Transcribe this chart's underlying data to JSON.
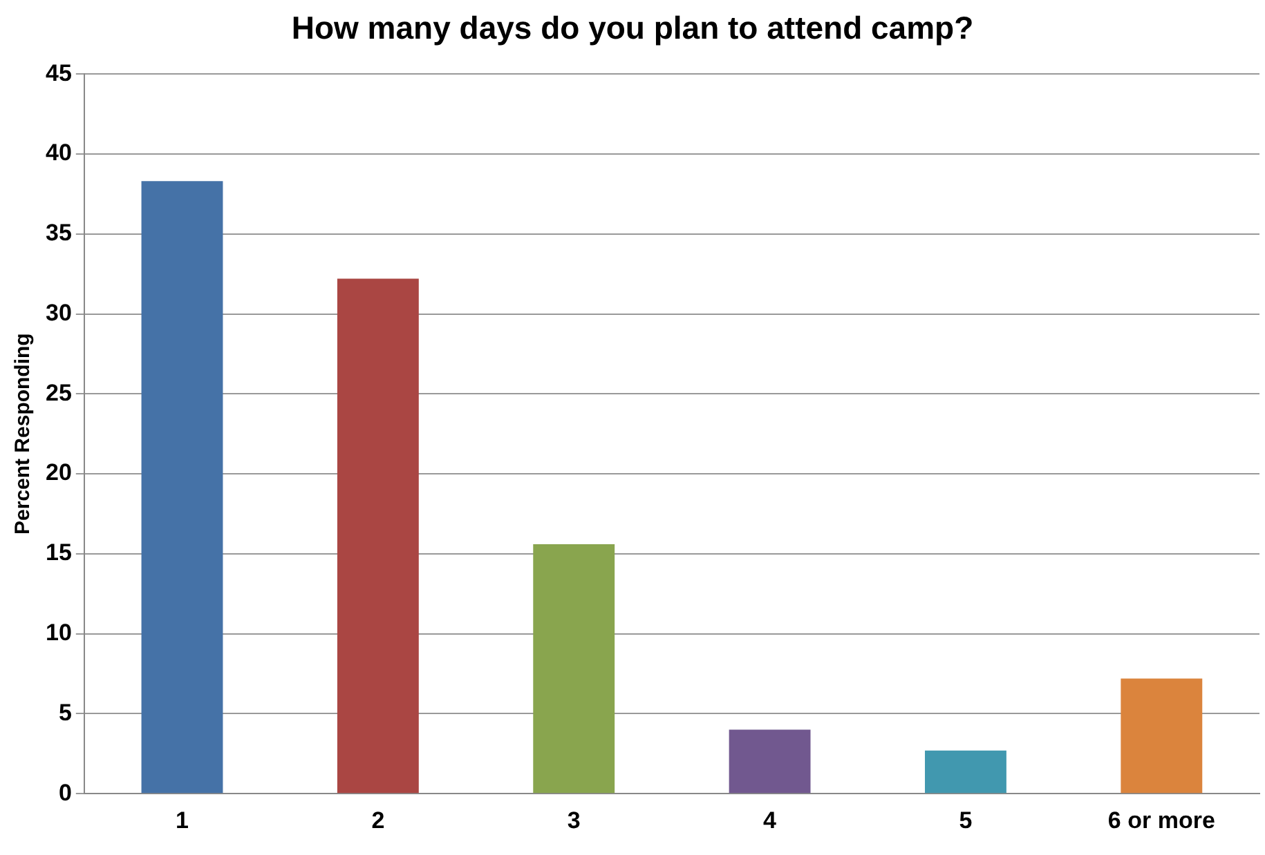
{
  "chart_data": {
    "type": "bar",
    "title": "How many days do you plan to attend camp?",
    "ylabel": "Percent Responding",
    "categories": [
      "1",
      "2",
      "3",
      "4",
      "5",
      "6 or more"
    ],
    "values": [
      38.3,
      32.2,
      15.6,
      4.0,
      2.7,
      7.2
    ],
    "colors": [
      "#4572a7",
      "#aa4643",
      "#89a54e",
      "#71588f",
      "#4198af",
      "#db843d"
    ],
    "ylim": [
      0,
      45
    ],
    "yticks": [
      0,
      5,
      10,
      15,
      20,
      25,
      30,
      35,
      40,
      45
    ],
    "grid": "y",
    "legend": false
  }
}
